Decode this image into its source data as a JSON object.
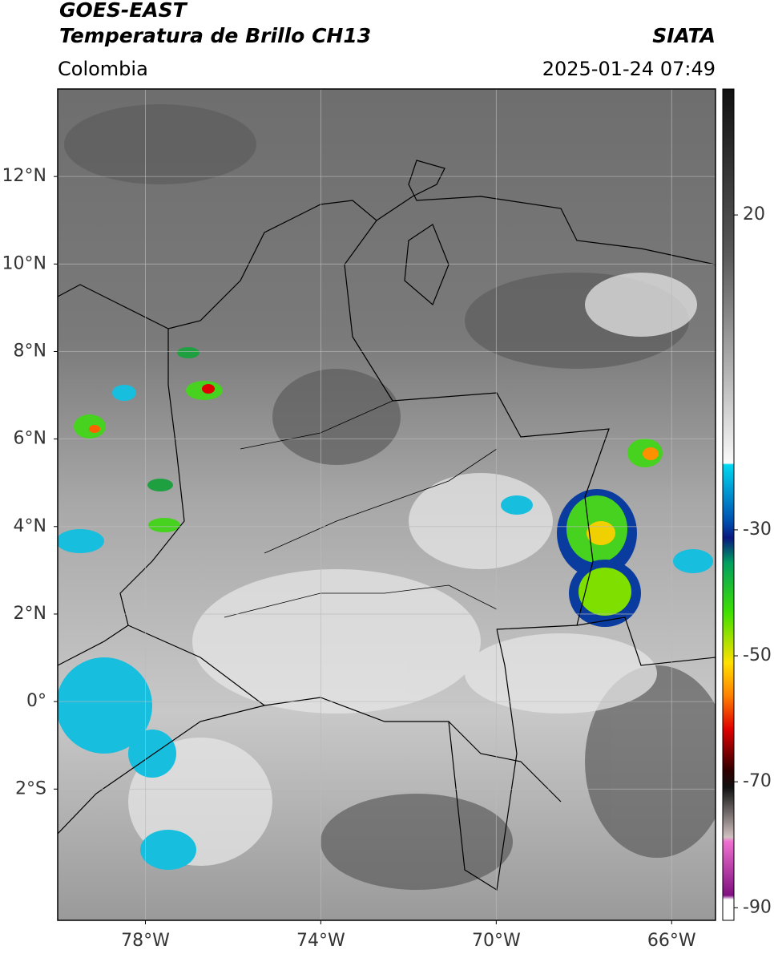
{
  "header": {
    "title": "GOES-EAST",
    "subtitle": "Temperatura de Brillo CH13",
    "source": "SIATA",
    "region": "Colombia",
    "datetime": "2025-01-24 07:49"
  },
  "map": {
    "xlim": [
      -80,
      -65
    ],
    "ylim": [
      -5,
      14
    ],
    "xticks": [
      {
        "value": -78,
        "label": "78°W"
      },
      {
        "value": -74,
        "label": "74°W"
      },
      {
        "value": -70,
        "label": "70°W"
      },
      {
        "value": -66,
        "label": "66°W"
      }
    ],
    "yticks": [
      {
        "value": 12,
        "label": "12°N"
      },
      {
        "value": 10,
        "label": "10°N"
      },
      {
        "value": 8,
        "label": "8°N"
      },
      {
        "value": 6,
        "label": "6°N"
      },
      {
        "value": 4,
        "label": "4°N"
      },
      {
        "value": 2,
        "label": "2°N"
      },
      {
        "value": 0,
        "label": "0°"
      },
      {
        "value": -2,
        "label": "2°S"
      }
    ],
    "grid": true
  },
  "colorbar": {
    "lim": [
      40,
      -92
    ],
    "ticks": [
      20,
      -30,
      -50,
      -70,
      -90
    ]
  }
}
